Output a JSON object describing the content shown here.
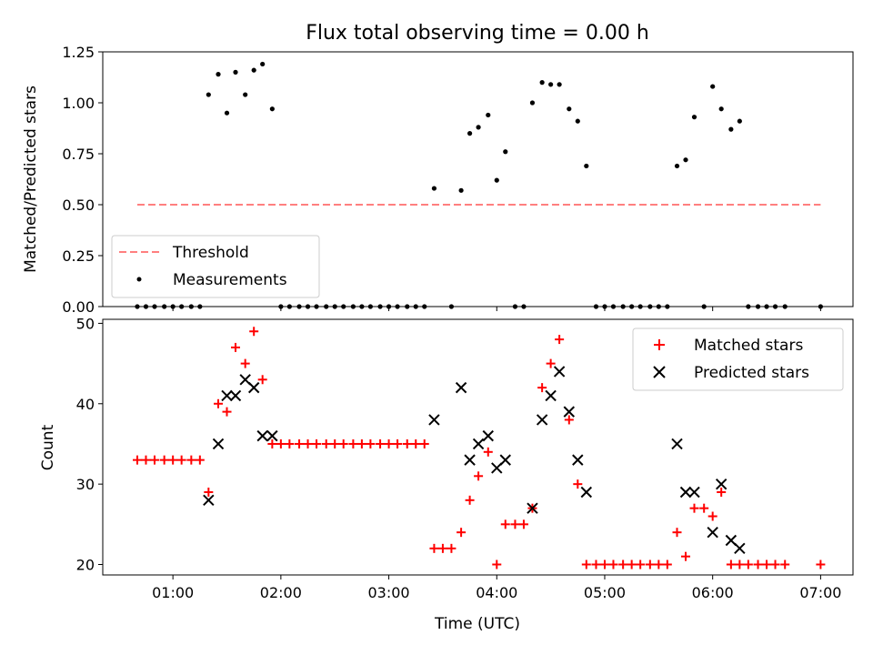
{
  "title": "Flux total observing time = 0.00 h",
  "colors": {
    "threshold": "#ff7f7f",
    "measurement": "#000000",
    "matched": "#ff0000",
    "predicted": "#000000"
  },
  "chart_data": [
    {
      "type": "scatter",
      "ylabel": "Matched/Predicted stars",
      "xlim": [
        0.35,
        7.3
      ],
      "ylim": [
        0,
        1.25
      ],
      "yticks": [
        0.0,
        0.25,
        0.5,
        0.75,
        1.0,
        1.25
      ],
      "ytick_labels": [
        "0.00",
        "0.25",
        "0.50",
        "0.75",
        "1.00",
        "1.25"
      ],
      "xticks": [
        1,
        2,
        3,
        4,
        5,
        6,
        7
      ],
      "legend": {
        "placement": "lower-left",
        "entries": [
          "Threshold",
          "Measurements"
        ]
      },
      "series": [
        {
          "name": "Threshold",
          "kind": "dashed-line",
          "x": [
            0.67,
            7.0
          ],
          "y": [
            0.5,
            0.5
          ]
        },
        {
          "name": "Measurements",
          "kind": "dot",
          "x": [
            0.67,
            0.75,
            0.83,
            0.92,
            1.0,
            1.08,
            1.17,
            1.25,
            1.33,
            1.42,
            1.5,
            1.58,
            1.67,
            1.75,
            1.83,
            1.92,
            2.0,
            2.08,
            2.17,
            2.25,
            2.33,
            2.42,
            2.5,
            2.58,
            2.67,
            2.75,
            2.83,
            2.92,
            3.0,
            3.08,
            3.17,
            3.25,
            3.33,
            3.42,
            3.58,
            3.67,
            3.75,
            3.83,
            3.92,
            4.0,
            4.08,
            4.17,
            4.25,
            4.33,
            4.42,
            4.5,
            4.58,
            4.67,
            4.75,
            4.83,
            4.92,
            5.0,
            5.08,
            5.17,
            5.25,
            5.33,
            5.42,
            5.5,
            5.58,
            5.67,
            5.75,
            5.83,
            5.92,
            6.0,
            6.08,
            6.17,
            6.25,
            6.33,
            6.42,
            6.5,
            6.58,
            6.67,
            7.0
          ],
          "y": [
            0,
            0,
            0,
            0,
            0,
            0,
            0,
            0,
            1.04,
            1.14,
            0.95,
            1.15,
            1.04,
            1.16,
            1.19,
            0.97,
            0,
            0,
            0,
            0,
            0,
            0,
            0,
            0,
            0,
            0,
            0,
            0,
            0,
            0,
            0,
            0,
            0,
            0.58,
            0,
            0.57,
            0.85,
            0.88,
            0.94,
            0.62,
            0.76,
            0,
            0,
            1.0,
            1.1,
            1.09,
            1.09,
            0.97,
            0.91,
            0.69,
            0,
            0,
            0,
            0,
            0,
            0,
            0,
            0,
            0,
            0.69,
            0.72,
            0.93,
            0,
            1.08,
            0.97,
            0.87,
            0.91,
            0,
            0,
            0,
            0,
            0,
            0
          ]
        }
      ]
    },
    {
      "type": "scatter",
      "xlabel": "Time (UTC)",
      "ylabel": "Count",
      "xlim": [
        0.35,
        7.3
      ],
      "ylim": [
        18.7,
        50.5
      ],
      "yticks": [
        20,
        30,
        40,
        50
      ],
      "ytick_labels": [
        "20",
        "30",
        "40",
        "50"
      ],
      "xticks": [
        1,
        2,
        3,
        4,
        5,
        6,
        7
      ],
      "xtick_labels": [
        "01:00",
        "02:00",
        "03:00",
        "04:00",
        "05:00",
        "06:00",
        "07:00"
      ],
      "legend": {
        "placement": "upper-right",
        "entries": [
          "Matched stars",
          "Predicted stars"
        ]
      },
      "series": [
        {
          "name": "Matched stars",
          "marker": "plus",
          "x": [
            0.67,
            0.75,
            0.83,
            0.92,
            1.0,
            1.08,
            1.17,
            1.25,
            1.33,
            1.42,
            1.5,
            1.58,
            1.67,
            1.75,
            1.83,
            1.92,
            2.0,
            2.08,
            2.17,
            2.25,
            2.33,
            2.42,
            2.5,
            2.58,
            2.67,
            2.75,
            2.83,
            2.92,
            3.0,
            3.08,
            3.17,
            3.25,
            3.33,
            3.42,
            3.5,
            3.58,
            3.67,
            3.75,
            3.83,
            3.92,
            4.0,
            4.08,
            4.17,
            4.25,
            4.33,
            4.42,
            4.5,
            4.58,
            4.67,
            4.75,
            4.83,
            4.92,
            5.0,
            5.08,
            5.17,
            5.25,
            5.33,
            5.42,
            5.5,
            5.58,
            5.67,
            5.75,
            5.83,
            5.92,
            6.0,
            6.08,
            6.17,
            6.25,
            6.33,
            6.42,
            6.5,
            6.58,
            6.67,
            7.0
          ],
          "y": [
            33,
            33,
            33,
            33,
            33,
            33,
            33,
            33,
            29,
            40,
            39,
            47,
            45,
            49,
            43,
            35,
            35,
            35,
            35,
            35,
            35,
            35,
            35,
            35,
            35,
            35,
            35,
            35,
            35,
            35,
            35,
            35,
            35,
            22,
            22,
            22,
            24,
            28,
            31,
            34,
            20,
            25,
            25,
            25,
            27,
            42,
            45,
            48,
            38,
            30,
            20,
            20,
            20,
            20,
            20,
            20,
            20,
            20,
            20,
            20,
            24,
            21,
            27,
            27,
            26,
            29,
            20,
            20,
            20,
            20,
            20,
            20,
            20,
            20
          ]
        },
        {
          "name": "Predicted stars",
          "marker": "x",
          "x": [
            1.33,
            1.42,
            1.5,
            1.58,
            1.67,
            1.75,
            1.83,
            1.92,
            3.42,
            3.67,
            3.75,
            3.83,
            3.92,
            4.0,
            4.08,
            4.33,
            4.42,
            4.5,
            4.58,
            4.67,
            4.75,
            4.83,
            5.67,
            5.75,
            5.83,
            6.0,
            6.08,
            6.17,
            6.25
          ],
          "y": [
            28,
            35,
            41,
            41,
            43,
            42,
            36,
            36,
            38,
            42,
            33,
            35,
            36,
            32,
            33,
            27,
            38,
            41,
            44,
            39,
            33,
            29,
            35,
            29,
            29,
            24,
            30,
            23,
            22
          ]
        }
      ]
    }
  ]
}
